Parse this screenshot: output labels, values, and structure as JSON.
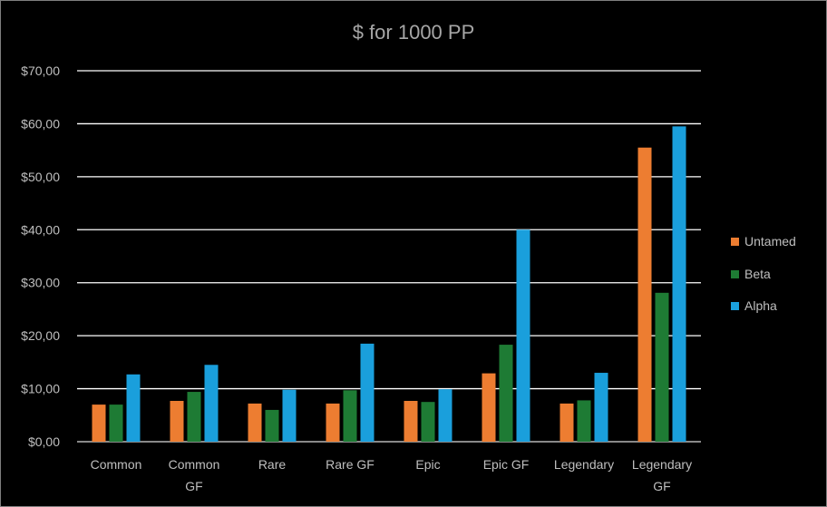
{
  "chart_data": {
    "type": "bar",
    "title": "$ for 1000 PP",
    "xlabel": "",
    "ylabel": "",
    "categories": [
      "Common",
      "Common GF",
      "Rare",
      "Rare GF",
      "Epic",
      "Epic GF",
      "Legendary",
      "Legendary GF"
    ],
    "series": [
      {
        "name": "Untamed",
        "color": "#ed7d31",
        "values": [
          7.0,
          7.7,
          7.2,
          7.2,
          7.7,
          12.9,
          7.2,
          55.5
        ]
      },
      {
        "name": "Beta",
        "color": "#1e7b34",
        "values": [
          7.0,
          9.4,
          6.0,
          9.7,
          7.5,
          18.3,
          7.8,
          28.1
        ]
      },
      {
        "name": "Alpha",
        "color": "#1a9fdc",
        "values": [
          12.7,
          14.5,
          9.8,
          18.5,
          9.9,
          40.0,
          13.0,
          59.5
        ]
      }
    ],
    "yticks": [
      "$0,00",
      "$10,00",
      "$20,00",
      "$30,00",
      "$40,00",
      "$50,00",
      "$60,00",
      "$70,00"
    ],
    "ylim": [
      0,
      70
    ],
    "grid": true,
    "legend_position": "right"
  }
}
